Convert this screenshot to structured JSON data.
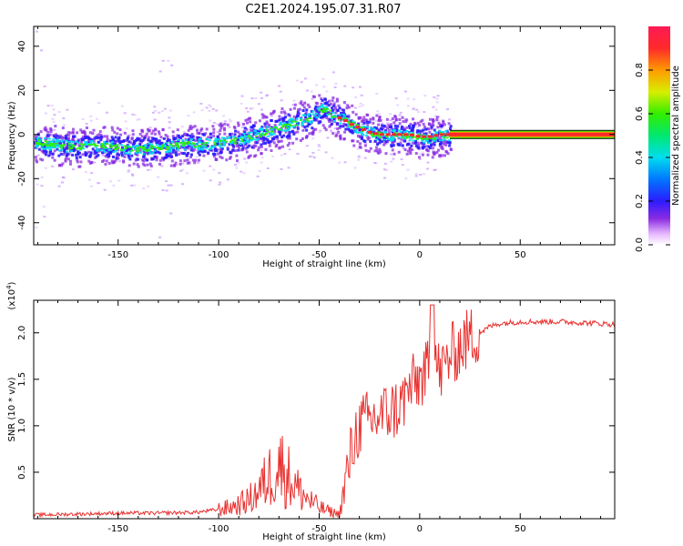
{
  "title": "C2E1.2024.195.07.31.R07",
  "colors": {
    "snr_line": "#e8312f",
    "ridge_core": "#ff2a2a",
    "axis": "#000000"
  },
  "chart_data": [
    {
      "type": "heatmap",
      "name": "spectrogram",
      "xlabel": "Height of straight line (km)",
      "ylabel": "Frequency (Hz)",
      "xlim": [
        -192,
        97
      ],
      "ylim": [
        -50,
        49
      ],
      "x_ticks": [
        "-150",
        "-100",
        "-50",
        "0",
        "50"
      ],
      "x_tick_values": [
        -150,
        -100,
        -50,
        0,
        50
      ],
      "y_ticks": [
        "40",
        "20",
        "0",
        "-20",
        "-40"
      ],
      "y_tick_values": [
        40,
        20,
        0,
        -20,
        -40
      ],
      "ridge_x": [
        -192,
        -185,
        -175,
        -165,
        -155,
        -145,
        -135,
        -125,
        -115,
        -105,
        -95,
        -85,
        -75,
        -65,
        -55,
        -48,
        -45,
        -42,
        -38,
        -35,
        -30,
        -25,
        -20,
        -15,
        -10,
        -5,
        0,
        5,
        10,
        15,
        97
      ],
      "ridge_freq": [
        -3,
        -4,
        -5,
        -5,
        -5,
        -6,
        -6,
        -5,
        -4,
        -4,
        -3,
        -1,
        2,
        5,
        8,
        12,
        10,
        8,
        7,
        5,
        3,
        1,
        0,
        0,
        0,
        0,
        -1,
        -1,
        0,
        0,
        0
      ],
      "constant_band": {
        "x_from": 15,
        "x_to": 97,
        "freq": 0
      },
      "colorbar": {
        "label": "Normalized spectral amplitude",
        "ticks": [
          "0.0",
          "0.2",
          "0.4",
          "0.6",
          "0.8"
        ],
        "tick_values": [
          0.0,
          0.2,
          0.4,
          0.6,
          0.8
        ],
        "range": [
          0,
          1
        ]
      }
    },
    {
      "type": "line",
      "name": "snr",
      "xlabel": "Height of straight line (km)",
      "ylabel": "SNR (10 * v/v)",
      "y_scale_label": "(x10",
      "y_scale_exp": "4",
      "xlim": [
        -192,
        97
      ],
      "ylim": [
        0,
        2.35
      ],
      "x_ticks": [
        "-150",
        "-100",
        "-50",
        "0",
        "50"
      ],
      "x_tick_values": [
        -150,
        -100,
        -50,
        0,
        50
      ],
      "y_ticks": [
        "0.5",
        "1.0",
        "1.5",
        "2.0"
      ],
      "y_tick_values": [
        0.5,
        1.0,
        1.5,
        2.0
      ],
      "x": [
        -192,
        -170,
        -150,
        -130,
        -110,
        -100,
        -95,
        -90,
        -85,
        -80,
        -75,
        -72,
        -70,
        -65,
        -60,
        -55,
        -50,
        -45,
        -40,
        -38,
        -35,
        -32,
        -30,
        -25,
        -20,
        -15,
        -10,
        -5,
        0,
        5,
        7,
        10,
        15,
        20,
        25,
        30,
        35,
        40,
        50,
        60,
        70,
        80,
        90,
        97
      ],
      "y": [
        0.04,
        0.05,
        0.06,
        0.06,
        0.07,
        0.1,
        0.12,
        0.15,
        0.2,
        0.3,
        0.45,
        0.55,
        0.6,
        0.45,
        0.3,
        0.2,
        0.12,
        0.08,
        0.05,
        0.25,
        0.6,
        0.9,
        1.0,
        1.05,
        1.1,
        1.15,
        1.2,
        1.4,
        1.5,
        1.6,
        1.8,
        1.55,
        1.75,
        1.85,
        1.95,
        2.0,
        2.07,
        2.1,
        2.12,
        2.12,
        2.12,
        2.11,
        2.1,
        2.09
      ]
    }
  ]
}
